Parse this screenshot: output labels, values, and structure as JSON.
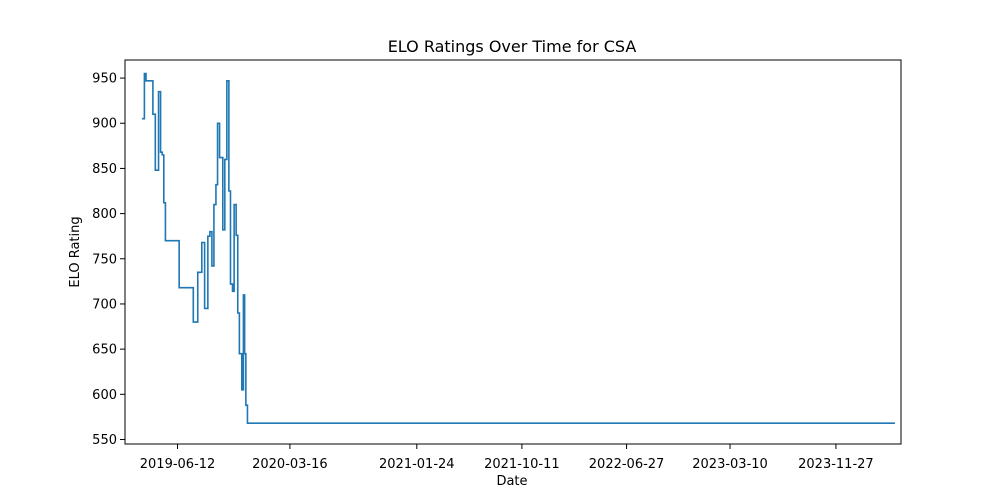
{
  "chart_data": {
    "type": "line",
    "title": "ELO Ratings Over Time for CSA",
    "xlabel": "Date",
    "ylabel": "ELO Rating",
    "grid": false,
    "legend": "none",
    "xlim": [
      "2019-02-02",
      "2024-05-06"
    ],
    "ylim": [
      545,
      970
    ],
    "x_ticks": [
      "2019-06-12",
      "2020-03-16",
      "2021-01-24",
      "2021-10-11",
      "2022-06-27",
      "2023-03-10",
      "2023-11-27"
    ],
    "y_ticks": [
      550,
      600,
      650,
      700,
      750,
      800,
      850,
      900,
      950
    ],
    "colors": {
      "series": "#1f77b4"
    },
    "series": [
      {
        "name": "",
        "step": true,
        "x": [
          "2019-03-16",
          "2019-03-22",
          "2019-03-26",
          "2019-04-12",
          "2019-04-18",
          "2019-04-26",
          "2019-05-01",
          "2019-05-05",
          "2019-05-09",
          "2019-05-13",
          "2019-05-17",
          "2019-05-21",
          "2019-05-25",
          "2019-06-16",
          "2019-07-21",
          "2019-08-01",
          "2019-08-11",
          "2019-08-18",
          "2019-08-26",
          "2019-08-31",
          "2019-09-05",
          "2019-09-10",
          "2019-09-15",
          "2019-09-19",
          "2019-09-24",
          "2019-10-02",
          "2019-10-07",
          "2019-10-12",
          "2019-10-17",
          "2019-10-21",
          "2019-10-26",
          "2019-10-30",
          "2019-11-04",
          "2019-11-08",
          "2019-11-12",
          "2019-11-18",
          "2019-11-22",
          "2019-11-25",
          "2019-11-28",
          "2019-12-02",
          "2019-12-06",
          "2019-12-10",
          "2019-12-14",
          "2019-12-18",
          "2019-12-22",
          "2019-12-26",
          "2019-12-30",
          "2020-01-03",
          "2020-01-07",
          "2020-01-11",
          "2020-01-15",
          "2020-01-18",
          "2020-01-23",
          "2020-01-28",
          "2020-02-02",
          "2024-04-21"
        ],
        "y": [
          905,
          955,
          947,
          910,
          848,
          935,
          868,
          865,
          812,
          770,
          770,
          770,
          770,
          718,
          680,
          735,
          768,
          695,
          775,
          780,
          742,
          810,
          832,
          900,
          862,
          782,
          860,
          947,
          825,
          722,
          714,
          810,
          776,
          690,
          645,
          605,
          710,
          645,
          588,
          568,
          568,
          568,
          568,
          568,
          568,
          568,
          568,
          568,
          568,
          568,
          568,
          568,
          568,
          568,
          568,
          568
        ]
      }
    ]
  }
}
